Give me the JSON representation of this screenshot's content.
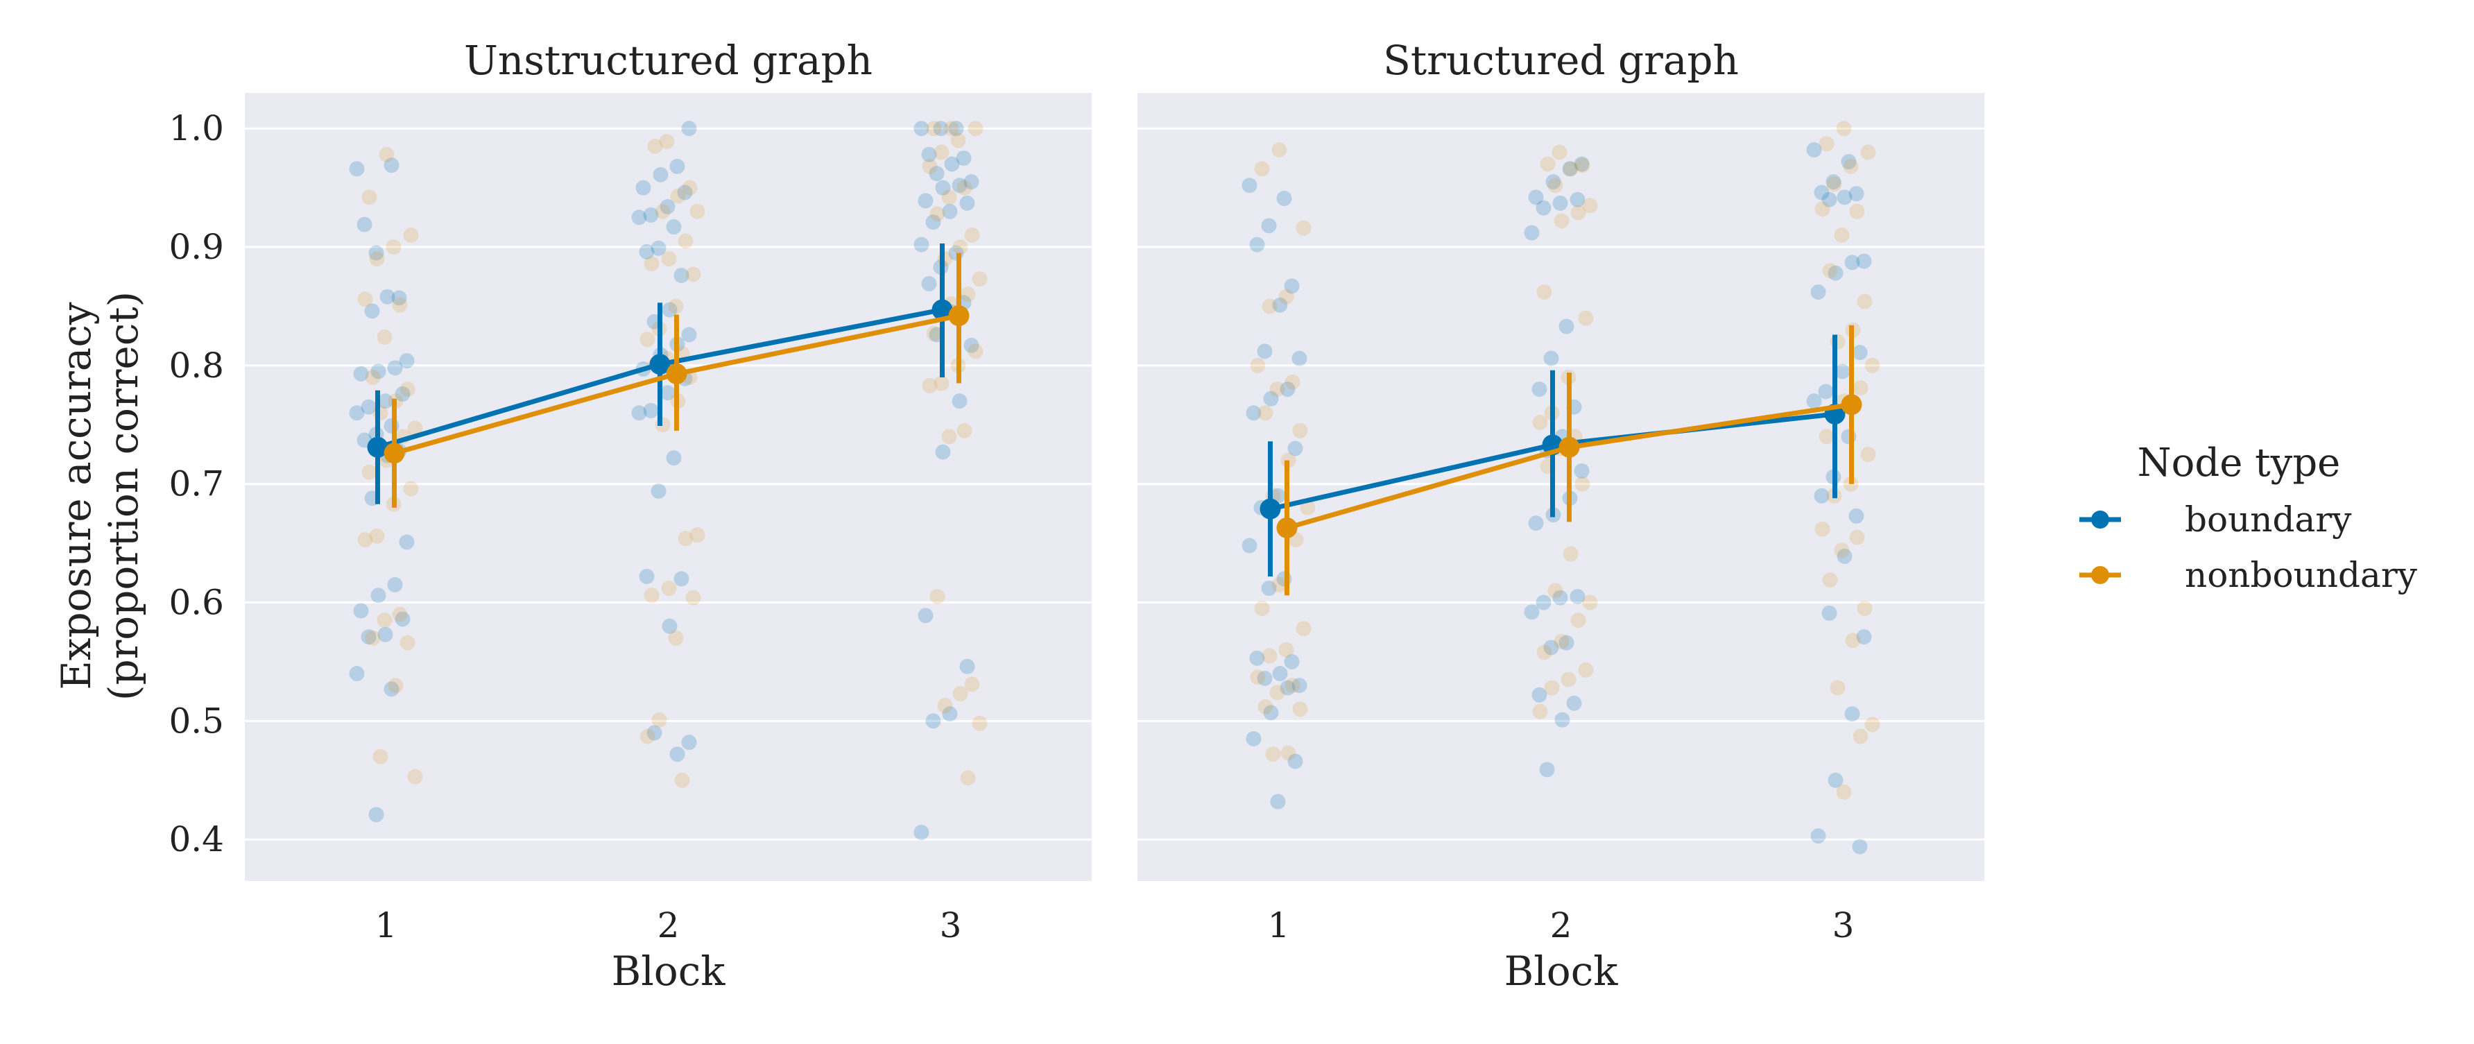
{
  "chart_data": {
    "type": "line",
    "ylabel_lines": [
      "Exposure accuracy",
      "(proportion correct)"
    ],
    "xlabel": "Block",
    "categories": [
      "1",
      "2",
      "3"
    ],
    "y_ticks": [
      "0.4",
      "0.5",
      "0.6",
      "0.7",
      "0.8",
      "0.9",
      "1.0"
    ],
    "ylim": [
      0.365,
      1.03
    ],
    "grid": true,
    "legend": {
      "title": "Node type",
      "placement": "right",
      "entries": [
        {
          "name": "boundary",
          "color": "#0173b2"
        },
        {
          "name": "nonboundary",
          "color": "#de8f05"
        }
      ]
    },
    "panels": [
      {
        "title": "Unstructured graph",
        "series": [
          {
            "name": "boundary",
            "color": "#0173b2",
            "means": [
              0.731,
              0.801,
              0.847
            ],
            "ci_low": [
              0.683,
              0.749,
              0.79
            ],
            "ci_high": [
              0.779,
              0.853,
              0.903
            ],
            "points": [
              [
                0.966,
                0.969,
                0.895,
                0.919,
                0.857,
                0.858,
                0.846,
                0.804,
                0.798,
                0.795,
                0.793,
                0.776,
                0.77,
                0.765,
                0.76,
                0.749,
                0.742,
                0.737,
                0.728,
                0.724,
                0.688,
                0.651,
                0.615,
                0.606,
                0.593,
                0.586,
                0.573,
                0.571,
                0.54,
                0.527,
                0.421
              ],
              [
                1.0,
                0.968,
                0.961,
                0.95,
                0.946,
                0.934,
                0.927,
                0.925,
                0.917,
                0.899,
                0.896,
                0.876,
                0.847,
                0.837,
                0.826,
                0.818,
                0.809,
                0.797,
                0.789,
                0.777,
                0.762,
                0.76,
                0.722,
                0.694,
                0.622,
                0.62,
                0.58,
                0.49,
                0.482,
                0.472
              ],
              [
                1.0,
                1.0,
                1.0,
                0.978,
                0.975,
                0.97,
                0.962,
                0.955,
                0.952,
                0.95,
                0.939,
                0.937,
                0.93,
                0.921,
                0.902,
                0.895,
                0.883,
                0.869,
                0.853,
                0.845,
                0.826,
                0.817,
                0.77,
                0.727,
                0.589,
                0.546,
                0.506,
                0.5,
                0.406
              ]
            ]
          },
          {
            "name": "nonboundary",
            "color": "#de8f05",
            "means": [
              0.726,
              0.793,
              0.842
            ],
            "ci_low": [
              0.68,
              0.745,
              0.785
            ],
            "ci_high": [
              0.772,
              0.843,
              0.895
            ],
            "points": [
              [
                0.978,
                0.942,
                0.91,
                0.9,
                0.89,
                0.856,
                0.851,
                0.824,
                0.79,
                0.78,
                0.77,
                0.76,
                0.747,
                0.74,
                0.72,
                0.71,
                0.696,
                0.683,
                0.656,
                0.653,
                0.59,
                0.585,
                0.57,
                0.566,
                0.53,
                0.47,
                0.453
              ],
              [
                0.989,
                0.985,
                0.95,
                0.943,
                0.93,
                0.93,
                0.905,
                0.89,
                0.886,
                0.877,
                0.85,
                0.831,
                0.822,
                0.81,
                0.806,
                0.8,
                0.79,
                0.77,
                0.75,
                0.657,
                0.654,
                0.612,
                0.606,
                0.604,
                0.57,
                0.501,
                0.487,
                0.45
              ],
              [
                1.0,
                1.0,
                1.0,
                0.99,
                0.98,
                0.968,
                0.95,
                0.942,
                0.928,
                0.91,
                0.9,
                0.89,
                0.873,
                0.86,
                0.852,
                0.827,
                0.812,
                0.8,
                0.785,
                0.783,
                0.745,
                0.74,
                0.605,
                0.531,
                0.523,
                0.513,
                0.498,
                0.452
              ]
            ]
          }
        ]
      },
      {
        "title": "Structured graph",
        "series": [
          {
            "name": "boundary",
            "color": "#0173b2",
            "means": [
              0.679,
              0.733,
              0.759
            ],
            "ci_low": [
              0.622,
              0.672,
              0.688
            ],
            "ci_high": [
              0.736,
              0.796,
              0.826
            ],
            "points": [
              [
                0.952,
                0.941,
                0.918,
                0.902,
                0.867,
                0.851,
                0.812,
                0.806,
                0.78,
                0.772,
                0.76,
                0.73,
                0.69,
                0.68,
                0.648,
                0.62,
                0.612,
                0.553,
                0.55,
                0.54,
                0.536,
                0.53,
                0.528,
                0.507,
                0.485,
                0.466,
                0.432
              ],
              [
                0.97,
                0.966,
                0.955,
                0.942,
                0.94,
                0.937,
                0.933,
                0.912,
                0.833,
                0.806,
                0.78,
                0.765,
                0.74,
                0.728,
                0.711,
                0.688,
                0.674,
                0.667,
                0.605,
                0.604,
                0.6,
                0.592,
                0.566,
                0.562,
                0.522,
                0.515,
                0.501,
                0.459
              ],
              [
                0.982,
                0.972,
                0.955,
                0.946,
                0.945,
                0.942,
                0.94,
                0.888,
                0.887,
                0.878,
                0.862,
                0.811,
                0.795,
                0.778,
                0.77,
                0.74,
                0.706,
                0.69,
                0.673,
                0.639,
                0.591,
                0.571,
                0.506,
                0.45,
                0.403,
                0.394
              ]
            ]
          },
          {
            "name": "nonboundary",
            "color": "#de8f05",
            "means": [
              0.663,
              0.731,
              0.767
            ],
            "ci_low": [
              0.606,
              0.668,
              0.7
            ],
            "ci_high": [
              0.72,
              0.794,
              0.834
            ],
            "points": [
              [
                0.982,
                0.966,
                0.916,
                0.858,
                0.85,
                0.8,
                0.786,
                0.78,
                0.76,
                0.745,
                0.72,
                0.69,
                0.68,
                0.653,
                0.615,
                0.595,
                0.578,
                0.56,
                0.555,
                0.537,
                0.53,
                0.524,
                0.512,
                0.51,
                0.473,
                0.472
              ],
              [
                0.98,
                0.97,
                0.969,
                0.966,
                0.952,
                0.935,
                0.929,
                0.922,
                0.862,
                0.84,
                0.79,
                0.76,
                0.752,
                0.74,
                0.73,
                0.715,
                0.7,
                0.641,
                0.61,
                0.6,
                0.585,
                0.567,
                0.558,
                0.543,
                0.535,
                0.528,
                0.508
              ],
              [
                1.0,
                0.987,
                0.98,
                0.968,
                0.953,
                0.932,
                0.93,
                0.91,
                0.88,
                0.854,
                0.83,
                0.82,
                0.8,
                0.781,
                0.77,
                0.74,
                0.725,
                0.7,
                0.69,
                0.662,
                0.655,
                0.644,
                0.619,
                0.595,
                0.568,
                0.528,
                0.497,
                0.487,
                0.44
              ]
            ]
          }
        ]
      }
    ]
  }
}
